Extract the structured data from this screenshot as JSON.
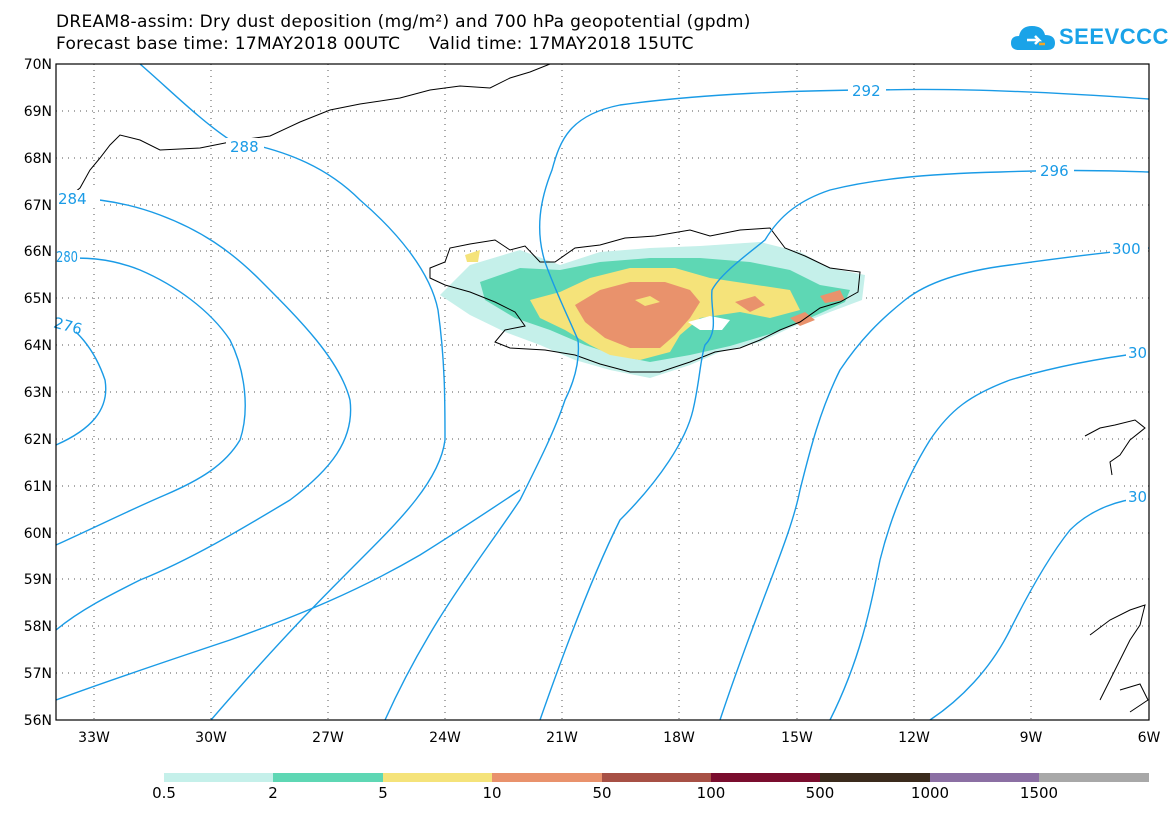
{
  "title": {
    "line1": "DREAM8-assim: Dry dust deposition (mg/m²) and 700 hPa geopotential (gpdm)",
    "line2": "Forecast base time: 17MAY2018 00UTC     Valid time: 17MAY2018 15UTC"
  },
  "logo": {
    "text": "SEEVCCC",
    "icon": "cloud-icon"
  },
  "axes": {
    "lat_labels": [
      "70N",
      "69N",
      "68N",
      "67N",
      "66N",
      "65N",
      "64N",
      "63N",
      "62N",
      "61N",
      "60N",
      "59N",
      "58N",
      "57N",
      "56N"
    ],
    "lon_labels": [
      "33W",
      "30W",
      "27W",
      "24W",
      "21W",
      "18W",
      "15W",
      "12W",
      "9W",
      "6W"
    ]
  },
  "contour_labels": [
    "292",
    "296",
    "288",
    "284",
    "280",
    "276",
    "300",
    "30",
    "30"
  ],
  "legend": {
    "colors": [
      "#c5f0ea",
      "#5ed7b4",
      "#f5e37a",
      "#e9926c",
      "#a75045",
      "#7a0d2e",
      "#3a2a1c",
      "#8b6fa3",
      "#a8a8a8"
    ],
    "labels": [
      "0.5",
      "2",
      "5",
      "10",
      "50",
      "100",
      "500",
      "1000",
      "1500"
    ]
  },
  "colors": {
    "contour": "#1a9be6",
    "coast": "#000000",
    "grid": "#555555"
  }
}
